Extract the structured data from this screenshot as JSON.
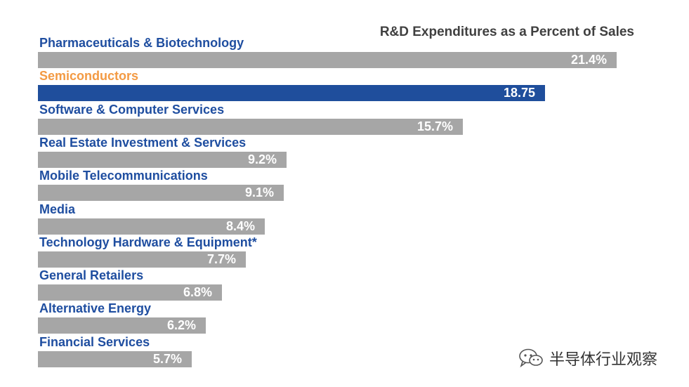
{
  "chart_data": {
    "type": "bar",
    "orientation": "horizontal",
    "title": "R&D Expenditures as a Percent of Sales",
    "categories": [
      "Pharmaceuticals & Biotechnology",
      "Semiconductors",
      "Software & Computer Services",
      "Real Estate Investment & Services",
      "Mobile Telecommunications",
      "Media",
      "Technology Hardware & Equipment*",
      "General Retailers",
      "Alternative Energy",
      "Financial Services"
    ],
    "values": [
      21.4,
      18.75,
      15.7,
      9.2,
      9.1,
      8.4,
      7.7,
      6.8,
      6.2,
      5.7
    ],
    "value_labels": [
      "21.4%",
      "18.75",
      "15.7%",
      "9.2%",
      "9.1%",
      "8.4%",
      "7.7%",
      "6.8%",
      "6.2%",
      "5.7%"
    ],
    "highlight_index": 1,
    "xlim": [
      0,
      25
    ],
    "grid": false,
    "legend": "none",
    "colors": {
      "bar": "#a6a6a6",
      "highlight_bar": "#1f4e9c",
      "label": "#1f4ea0",
      "highlight_label": "#f39a43",
      "title": "#404040",
      "value": "#ffffff"
    }
  },
  "watermark": {
    "text": "半导体行业观察",
    "icon": "wechat-icon"
  }
}
